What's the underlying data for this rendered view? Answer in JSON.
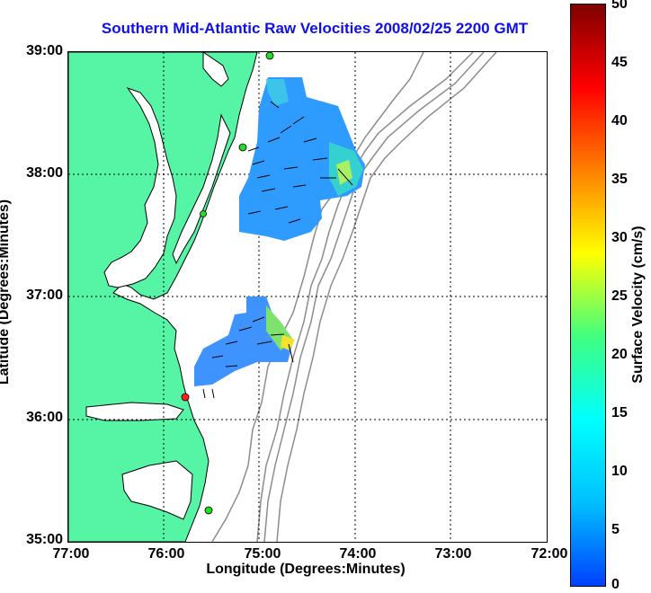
{
  "title": "Southern Mid-Atlantic Raw Velocities 2008/02/25 2200 GMT",
  "axes": {
    "xlabel": "Longitude (Degrees:Minutes)",
    "ylabel": "Latitude (Degrees:Minutes)",
    "x_ticks": [
      "77:00",
      "76:00",
      "75:00",
      "74:00",
      "73:00",
      "72:00"
    ],
    "y_ticks": [
      "39:00",
      "38:00",
      "37:00",
      "36:00",
      "35:00"
    ]
  },
  "colorbar": {
    "label": "Surface Velocity (cm/s)",
    "ticks": [
      "50",
      "45",
      "40",
      "35",
      "30",
      "25",
      "20",
      "15",
      "10",
      "5",
      "0"
    ],
    "colors": [
      "#0040ff",
      "#00c0ff",
      "#00ffff",
      "#40ff80",
      "#ffff00",
      "#ff8000",
      "#ff0000",
      "#800000"
    ]
  },
  "colors": {
    "land": "#56f5a6",
    "water": "#ffffff",
    "grid": "#000000",
    "bathymetry": "#8c8c8c",
    "station_active": "#22dd22",
    "station_inactive": "#ff2020"
  },
  "map_data": {
    "region": "Southern Mid-Atlantic",
    "lon_range": [
      "77:00",
      "72:00"
    ],
    "lat_range": [
      "35:00",
      "39:00"
    ],
    "velocity_range_cm_s": [
      0,
      50
    ]
  }
}
